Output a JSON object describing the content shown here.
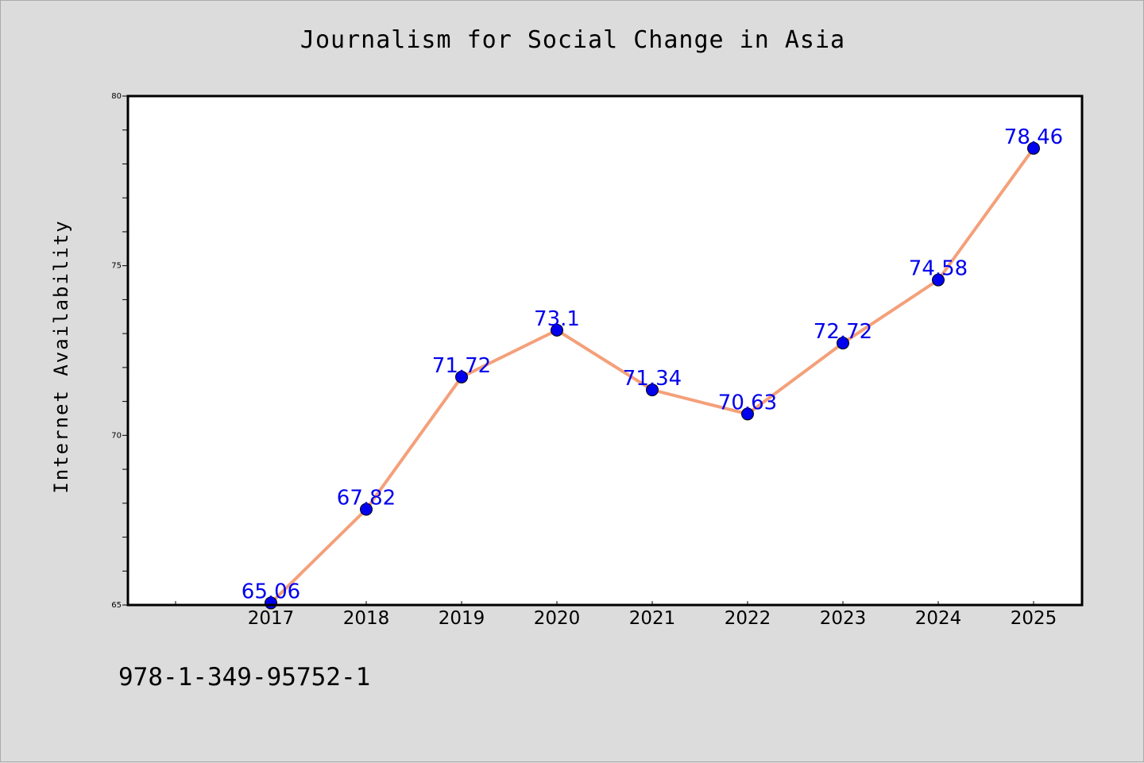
{
  "chart_data": {
    "type": "line",
    "title": "Journalism for Social Change in Asia",
    "xlabel": "",
    "ylabel": "Internet Availability",
    "categories": [
      "2017",
      "2018",
      "2019",
      "2020",
      "2021",
      "2022",
      "2023",
      "2024",
      "2025"
    ],
    "series": [
      {
        "values": [
          65.06,
          67.82,
          71.72,
          73.1,
          71.34,
          70.63,
          72.72,
          74.58,
          78.46
        ],
        "labels": [
          "65.06",
          "67.82",
          "71.72",
          "73.1",
          "71.34",
          "70.63",
          "72.72",
          "74.58",
          "78.46"
        ],
        "line_color": "#f4a07a",
        "marker_color": "#0000ee"
      }
    ],
    "ylim": [
      65,
      80
    ],
    "yticks": [
      "65",
      "70",
      "75",
      "80"
    ],
    "grid": false,
    "legend": "none"
  },
  "footer": {
    "isbn": "978-1-349-95752-1"
  }
}
